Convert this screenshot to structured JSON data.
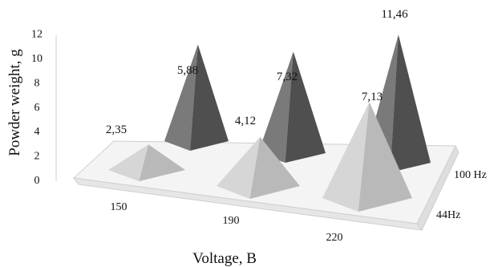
{
  "chart_data": {
    "type": "bar",
    "subtype": "3d-pyramid",
    "xlabel": "Voltage, B",
    "ylabel": "Powder weight, g",
    "categories": [
      "150",
      "190",
      "220"
    ],
    "series": [
      {
        "name": "44Hz",
        "values": [
          2.35,
          4.12,
          7.13
        ],
        "labels": [
          "2,35",
          "4,12",
          "7,13"
        ],
        "color": "#c9c9c9"
      },
      {
        "name": "100 Hz",
        "values": [
          5.88,
          7.32,
          11.46
        ],
        "labels": [
          "5,88",
          "7,32",
          "11,46"
        ],
        "color": "#6e6e6e"
      }
    ],
    "yticks": [
      "0",
      "2",
      "4",
      "6",
      "8",
      "10",
      "12"
    ],
    "ylim": [
      0,
      12
    ],
    "grid": false,
    "legend": "none"
  }
}
